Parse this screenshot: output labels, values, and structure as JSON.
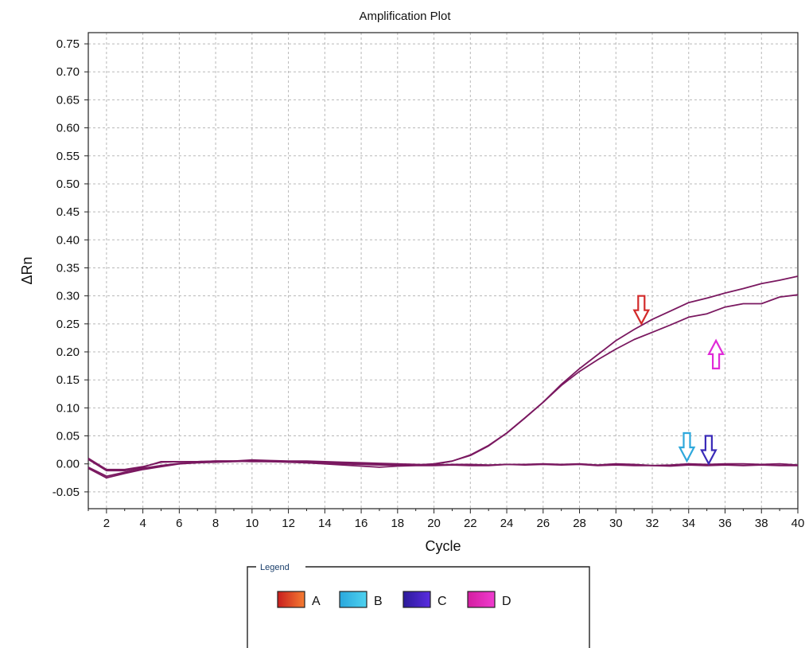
{
  "chart_data": {
    "type": "line",
    "title": "Amplification Plot",
    "xlabel": "Cycle",
    "ylabel": "ΔRn",
    "xlim": [
      1,
      40
    ],
    "ylim": [
      -0.08,
      0.77
    ],
    "xticks": [
      2,
      4,
      6,
      8,
      10,
      12,
      14,
      16,
      18,
      20,
      22,
      24,
      26,
      28,
      30,
      32,
      34,
      36,
      38,
      40
    ],
    "yticks": [
      -0.05,
      0,
      0.05,
      0.1,
      0.15,
      0.2,
      0.25,
      0.3,
      0.35,
      0.4,
      0.45,
      0.5,
      0.55,
      0.6,
      0.65,
      0.7,
      0.75
    ],
    "ytick_labels": [
      "-0.05",
      "0.00",
      "0.05",
      "0.10",
      "0.15",
      "0.20",
      "0.25",
      "0.30",
      "0.35",
      "0.40",
      "0.45",
      "0.50",
      "0.55",
      "0.60",
      "0.65",
      "0.70",
      "0.75"
    ],
    "grid": true,
    "series_color": "#7a1860",
    "series": [
      {
        "values": [
          [
            1,
            0.008
          ],
          [
            2,
            -0.012
          ],
          [
            3,
            -0.012
          ],
          [
            4,
            -0.006
          ],
          [
            5,
            0.004
          ],
          [
            6,
            0.004
          ],
          [
            7,
            0.004
          ],
          [
            8,
            0.005
          ],
          [
            9,
            0.005
          ],
          [
            10,
            0.004
          ],
          [
            11,
            0.004
          ],
          [
            12,
            0.004
          ],
          [
            13,
            0.003
          ],
          [
            14,
            0.002
          ],
          [
            15,
            0.001
          ],
          [
            16,
            0.0
          ],
          [
            17,
            -0.001
          ],
          [
            18,
            -0.002
          ],
          [
            19,
            -0.002
          ],
          [
            20,
            -0.001
          ],
          [
            21,
            0.005
          ],
          [
            22,
            0.015
          ],
          [
            23,
            0.032
          ],
          [
            24,
            0.055
          ],
          [
            25,
            0.082
          ],
          [
            26,
            0.11
          ],
          [
            27,
            0.142
          ],
          [
            28,
            0.17
          ],
          [
            29,
            0.195
          ],
          [
            30,
            0.22
          ],
          [
            31,
            0.24
          ],
          [
            32,
            0.258
          ],
          [
            33,
            0.273
          ],
          [
            34,
            0.288
          ],
          [
            35,
            0.296
          ],
          [
            36,
            0.305
          ],
          [
            37,
            0.313
          ],
          [
            38,
            0.322
          ],
          [
            39,
            0.328
          ],
          [
            40,
            0.335
          ]
        ]
      },
      {
        "values": [
          [
            1,
            0.01
          ],
          [
            2,
            -0.01
          ],
          [
            3,
            -0.01
          ],
          [
            4,
            -0.005
          ],
          [
            5,
            0.003
          ],
          [
            6,
            0.004
          ],
          [
            7,
            0.004
          ],
          [
            8,
            0.005
          ],
          [
            9,
            0.005
          ],
          [
            10,
            0.005
          ],
          [
            11,
            0.004
          ],
          [
            12,
            0.003
          ],
          [
            13,
            0.002
          ],
          [
            14,
            0.001
          ],
          [
            15,
            0.0
          ],
          [
            16,
            -0.001
          ],
          [
            17,
            -0.002
          ],
          [
            18,
            -0.002
          ],
          [
            19,
            -0.002
          ],
          [
            20,
            0.0
          ],
          [
            21,
            0.005
          ],
          [
            22,
            0.016
          ],
          [
            23,
            0.033
          ],
          [
            24,
            0.055
          ],
          [
            25,
            0.082
          ],
          [
            26,
            0.11
          ],
          [
            27,
            0.14
          ],
          [
            28,
            0.165
          ],
          [
            29,
            0.186
          ],
          [
            30,
            0.205
          ],
          [
            31,
            0.222
          ],
          [
            32,
            0.235
          ],
          [
            33,
            0.248
          ],
          [
            34,
            0.262
          ],
          [
            35,
            0.268
          ],
          [
            36,
            0.28
          ],
          [
            37,
            0.286
          ],
          [
            38,
            0.286
          ],
          [
            39,
            0.298
          ],
          [
            40,
            0.302
          ]
        ]
      },
      {
        "values": [
          [
            1,
            -0.006
          ],
          [
            2,
            -0.022
          ],
          [
            3,
            -0.015
          ],
          [
            4,
            -0.008
          ],
          [
            5,
            -0.003
          ],
          [
            6,
            0.001
          ],
          [
            7,
            0.003
          ],
          [
            8,
            0.004
          ],
          [
            9,
            0.005
          ],
          [
            10,
            0.007
          ],
          [
            11,
            0.006
          ],
          [
            12,
            0.005
          ],
          [
            13,
            0.005
          ],
          [
            14,
            0.004
          ],
          [
            15,
            0.003
          ],
          [
            16,
            0.002
          ],
          [
            17,
            0.001
          ],
          [
            18,
            0.0
          ],
          [
            19,
            -0.001
          ],
          [
            20,
            -0.002
          ],
          [
            21,
            -0.001
          ],
          [
            22,
            -0.001
          ],
          [
            23,
            -0.002
          ],
          [
            24,
            -0.001
          ],
          [
            25,
            -0.001
          ],
          [
            26,
            0.0
          ],
          [
            27,
            -0.001
          ],
          [
            28,
            0.0
          ],
          [
            29,
            -0.002
          ],
          [
            30,
            0.0
          ],
          [
            31,
            -0.001
          ],
          [
            32,
            -0.003
          ],
          [
            33,
            -0.002
          ],
          [
            34,
            0.0
          ],
          [
            35,
            -0.001
          ],
          [
            36,
            0.0
          ],
          [
            37,
            0.0
          ],
          [
            38,
            -0.001
          ],
          [
            39,
            0.0
          ],
          [
            40,
            -0.002
          ]
        ]
      },
      {
        "values": [
          [
            1,
            -0.008
          ],
          [
            2,
            -0.025
          ],
          [
            3,
            -0.017
          ],
          [
            4,
            -0.01
          ],
          [
            5,
            -0.005
          ],
          [
            6,
            0.0
          ],
          [
            7,
            0.002
          ],
          [
            8,
            0.003
          ],
          [
            9,
            0.004
          ],
          [
            10,
            0.005
          ],
          [
            11,
            0.005
          ],
          [
            12,
            0.004
          ],
          [
            13,
            0.002
          ],
          [
            14,
            0.0
          ],
          [
            15,
            -0.002
          ],
          [
            16,
            -0.004
          ],
          [
            17,
            -0.006
          ],
          [
            18,
            -0.004
          ],
          [
            19,
            -0.003
          ],
          [
            20,
            -0.003
          ],
          [
            21,
            -0.002
          ],
          [
            22,
            -0.003
          ],
          [
            23,
            -0.003
          ],
          [
            24,
            -0.001
          ],
          [
            25,
            -0.002
          ],
          [
            26,
            -0.001
          ],
          [
            27,
            -0.002
          ],
          [
            28,
            -0.001
          ],
          [
            29,
            -0.003
          ],
          [
            30,
            -0.002
          ],
          [
            31,
            -0.003
          ],
          [
            32,
            -0.003
          ],
          [
            33,
            -0.004
          ],
          [
            34,
            -0.002
          ],
          [
            35,
            -0.003
          ],
          [
            36,
            -0.002
          ],
          [
            37,
            -0.003
          ],
          [
            38,
            -0.002
          ],
          [
            39,
            -0.003
          ],
          [
            40,
            -0.003
          ]
        ]
      }
    ],
    "annotations": [
      {
        "type": "arrow",
        "direction": "down",
        "x": 31.4,
        "y": 0.3,
        "color": "#d22a2a"
      },
      {
        "type": "arrow",
        "direction": "up",
        "x": 35.5,
        "y": 0.22,
        "color": "#e02ad8"
      },
      {
        "type": "arrow",
        "direction": "down",
        "x": 33.9,
        "y": 0.055,
        "color": "#2ea8dc"
      },
      {
        "type": "arrow",
        "direction": "down",
        "x": 35.1,
        "y": 0.05,
        "color": "#3a2bb8"
      }
    ],
    "legend": {
      "title": "Legend",
      "placement": "bottom-center",
      "entries": [
        {
          "label": "A",
          "color_start": "#c81e1e",
          "color_end": "#f57c32"
        },
        {
          "label": "B",
          "color_start": "#2aa7dc",
          "color_end": "#4fd2f0"
        },
        {
          "label": "C",
          "color_start": "#2c1b9a",
          "color_end": "#5a2ce0"
        },
        {
          "label": "D",
          "color_start": "#d31ea0",
          "color_end": "#f03ccf"
        }
      ]
    }
  }
}
